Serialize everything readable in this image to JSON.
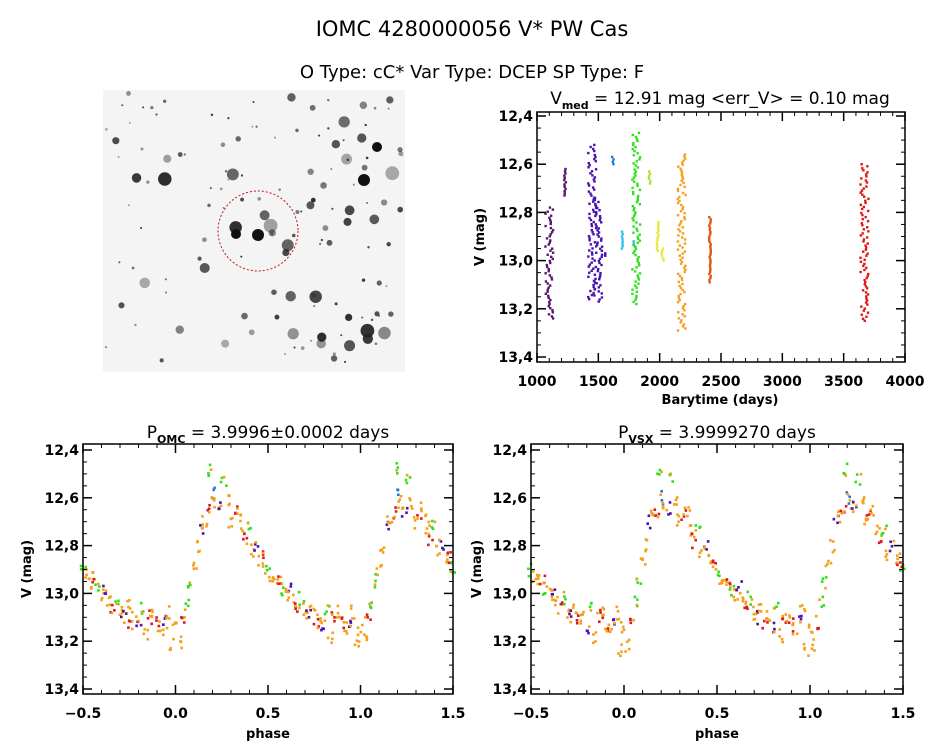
{
  "header": {
    "title": "IOMC 4280000056   V* PW Cas",
    "subtitle": "O Type: cC*   Var Type: DCEP   SP Type: F"
  },
  "palette": [
    "#5a1670",
    "#4a12b0",
    "#30e020",
    "#f5a01a",
    "#e01818",
    "#1e78d8",
    "#30c0e8",
    "#b0e030",
    "#e8e840",
    "#e05818"
  ],
  "chart_data": [
    {
      "type": "scatter",
      "title_main": "V",
      "title_sub": "med",
      "title_rest": " = 12.91 mag <err_V> = 0.10 mag",
      "xlabel": "Barytime (days)",
      "ylabel": "V (mag)",
      "xlim": [
        1000,
        4000
      ],
      "ylim": [
        13.4,
        12.4
      ],
      "y_inverted": true,
      "xticks": [
        "1000",
        "1500",
        "2000",
        "2500",
        "3000",
        "3500",
        "4000"
      ],
      "yticks": [
        "12.4",
        "12.6",
        "12.8",
        "13.0",
        "13.2",
        "13.4"
      ],
      "groups": [
        {
          "x": 1100,
          "vmin": 12.78,
          "vmax": 13.24,
          "color": 0
        },
        {
          "x": 1230,
          "vmin": 12.62,
          "vmax": 12.73,
          "color": 0
        },
        {
          "x": 1450,
          "vmin": 12.52,
          "vmax": 13.16,
          "color": 1
        },
        {
          "x": 1500,
          "vmin": 12.74,
          "vmax": 13.17,
          "color": 1
        },
        {
          "x": 1550,
          "vmin": 12.97,
          "vmax": 12.98,
          "color": 1
        },
        {
          "x": 1620,
          "vmin": 12.57,
          "vmax": 12.6,
          "color": 5
        },
        {
          "x": 1700,
          "vmin": 12.88,
          "vmax": 12.95,
          "color": 6
        },
        {
          "x": 1790,
          "vmin": 12.92,
          "vmax": 12.94,
          "color": 6
        },
        {
          "x": 1810,
          "vmin": 12.47,
          "vmax": 13.18,
          "color": 2
        },
        {
          "x": 1920,
          "vmin": 12.63,
          "vmax": 12.68,
          "color": 7
        },
        {
          "x": 1985,
          "vmin": 12.84,
          "vmax": 12.96,
          "color": 8
        },
        {
          "x": 2025,
          "vmin": 12.95,
          "vmax": 13.0,
          "color": 8
        },
        {
          "x": 2180,
          "vmin": 12.56,
          "vmax": 13.29,
          "color": 3
        },
        {
          "x": 2410,
          "vmin": 12.82,
          "vmax": 13.09,
          "color": 9
        },
        {
          "x": 3670,
          "vmin": 12.6,
          "vmax": 13.25,
          "color": 4
        }
      ]
    },
    {
      "type": "scatter",
      "title_main": "P",
      "title_sub": "OMC",
      "title_rest": " = 3.9996±0.0002 days",
      "xlabel": "phase",
      "ylabel": "V (mag)",
      "xlim": [
        -0.5,
        1.5
      ],
      "ylim": [
        13.4,
        12.4
      ],
      "y_inverted": true,
      "xticks": [
        "-0.5",
        "0.0",
        "0.5",
        "1.0",
        "1.5"
      ],
      "yticks": [
        "12.4",
        "12.6",
        "12.8",
        "13.0",
        "13.2",
        "13.4"
      ],
      "points": [
        [
          0.0,
          13.15,
          3
        ],
        [
          0.02,
          13.2,
          3
        ],
        [
          0.04,
          13.1,
          4
        ],
        [
          0.06,
          13.05,
          2
        ],
        [
          0.08,
          12.95,
          2
        ],
        [
          0.1,
          12.9,
          3
        ],
        [
          0.12,
          12.8,
          3
        ],
        [
          0.14,
          12.72,
          1
        ],
        [
          0.16,
          12.7,
          3
        ],
        [
          0.18,
          12.66,
          4
        ],
        [
          0.19,
          12.48,
          2
        ],
        [
          0.2,
          12.58,
          5
        ],
        [
          0.22,
          12.62,
          3
        ],
        [
          0.24,
          12.65,
          1
        ],
        [
          0.26,
          12.52,
          2
        ],
        [
          0.28,
          12.62,
          3
        ],
        [
          0.3,
          12.7,
          3
        ],
        [
          0.32,
          12.66,
          4
        ],
        [
          0.34,
          12.65,
          3
        ],
        [
          0.36,
          12.72,
          3
        ],
        [
          0.38,
          12.78,
          4
        ],
        [
          0.4,
          12.72,
          2
        ],
        [
          0.42,
          12.82,
          3
        ],
        [
          0.44,
          12.8,
          1
        ],
        [
          0.46,
          12.86,
          3
        ],
        [
          0.48,
          12.85,
          4
        ],
        [
          0.5,
          12.9,
          2
        ],
        [
          0.52,
          12.92,
          3
        ],
        [
          0.54,
          12.95,
          3
        ],
        [
          0.56,
          12.94,
          4
        ],
        [
          0.58,
          12.98,
          2
        ],
        [
          0.6,
          13.0,
          3
        ],
        [
          0.62,
          12.98,
          1
        ],
        [
          0.64,
          13.03,
          3
        ],
        [
          0.66,
          13.06,
          4
        ],
        [
          0.68,
          13.02,
          2
        ],
        [
          0.7,
          13.08,
          3
        ],
        [
          0.72,
          13.1,
          0
        ],
        [
          0.74,
          13.05,
          3
        ],
        [
          0.76,
          13.12,
          4
        ],
        [
          0.78,
          13.1,
          3
        ],
        [
          0.8,
          13.14,
          1
        ],
        [
          0.82,
          13.06,
          2
        ],
        [
          0.84,
          13.18,
          3
        ],
        [
          0.86,
          13.1,
          4
        ],
        [
          0.88,
          13.08,
          3
        ],
        [
          0.9,
          13.12,
          4
        ],
        [
          0.92,
          13.15,
          3
        ],
        [
          0.94,
          13.12,
          1
        ],
        [
          0.96,
          13.08,
          3
        ],
        [
          0.98,
          13.22,
          3
        ]
      ]
    },
    {
      "type": "scatter",
      "title_main": "P",
      "title_sub": "VSX",
      "title_rest": " = 3.9999270 days",
      "xlabel": "phase",
      "ylabel": "V (mag)",
      "xlim": [
        -0.5,
        1.5
      ],
      "ylim": [
        13.4,
        12.4
      ],
      "y_inverted": true,
      "xticks": [
        "-0.5",
        "0.0",
        "0.5",
        "1.0",
        "1.5"
      ],
      "yticks": [
        "12.4",
        "12.6",
        "12.8",
        "13.0",
        "13.2",
        "13.4"
      ],
      "points": [
        [
          0.0,
          13.14,
          3
        ],
        [
          0.02,
          13.22,
          3
        ],
        [
          0.04,
          13.12,
          4
        ],
        [
          0.06,
          13.04,
          2
        ],
        [
          0.08,
          12.96,
          2
        ],
        [
          0.1,
          12.88,
          3
        ],
        [
          0.12,
          12.8,
          3
        ],
        [
          0.14,
          12.7,
          1
        ],
        [
          0.16,
          12.68,
          3
        ],
        [
          0.18,
          12.66,
          4
        ],
        [
          0.19,
          12.48,
          2
        ],
        [
          0.2,
          12.6,
          5
        ],
        [
          0.22,
          12.63,
          3
        ],
        [
          0.24,
          12.64,
          1
        ],
        [
          0.26,
          12.52,
          2
        ],
        [
          0.28,
          12.62,
          3
        ],
        [
          0.3,
          12.7,
          3
        ],
        [
          0.32,
          12.67,
          4
        ],
        [
          0.34,
          12.66,
          3
        ],
        [
          0.36,
          12.73,
          3
        ],
        [
          0.38,
          12.78,
          4
        ],
        [
          0.4,
          12.73,
          2
        ],
        [
          0.42,
          12.83,
          3
        ],
        [
          0.44,
          12.8,
          1
        ],
        [
          0.46,
          12.86,
          3
        ],
        [
          0.48,
          12.86,
          4
        ],
        [
          0.5,
          12.9,
          2
        ],
        [
          0.52,
          12.93,
          3
        ],
        [
          0.54,
          12.95,
          3
        ],
        [
          0.56,
          12.95,
          4
        ],
        [
          0.58,
          12.98,
          2
        ],
        [
          0.6,
          13.01,
          3
        ],
        [
          0.62,
          12.98,
          1
        ],
        [
          0.64,
          13.04,
          3
        ],
        [
          0.66,
          13.06,
          4
        ],
        [
          0.68,
          13.02,
          2
        ],
        [
          0.7,
          13.08,
          3
        ],
        [
          0.72,
          13.1,
          0
        ],
        [
          0.74,
          13.06,
          3
        ],
        [
          0.76,
          13.12,
          4
        ],
        [
          0.78,
          13.1,
          3
        ],
        [
          0.8,
          13.15,
          1
        ],
        [
          0.82,
          13.06,
          2
        ],
        [
          0.84,
          13.18,
          3
        ],
        [
          0.86,
          13.1,
          4
        ],
        [
          0.88,
          13.09,
          3
        ],
        [
          0.9,
          13.13,
          4
        ],
        [
          0.92,
          13.16,
          3
        ],
        [
          0.94,
          13.12,
          1
        ],
        [
          0.96,
          13.08,
          3
        ],
        [
          0.98,
          13.24,
          3
        ]
      ]
    }
  ]
}
